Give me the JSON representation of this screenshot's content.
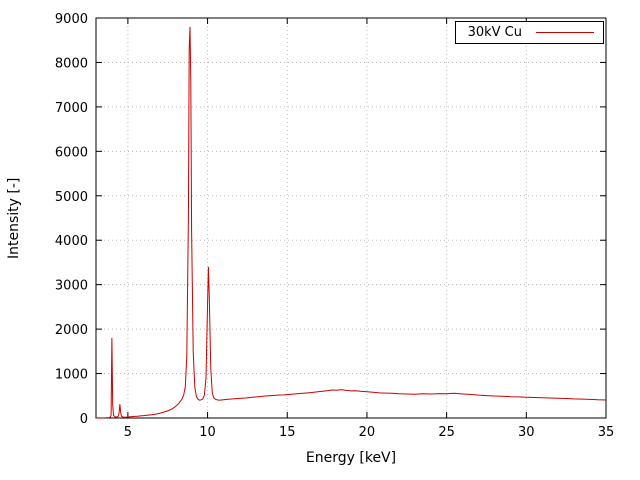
{
  "chart_data": {
    "type": "line",
    "title": "",
    "xlabel": "Energy [keV]",
    "ylabel": "Intensity [-]",
    "xlim": [
      3,
      35
    ],
    "ylim": [
      0,
      9000
    ],
    "xticks": [
      5,
      10,
      15,
      20,
      25,
      30,
      35
    ],
    "yticks": [
      0,
      1000,
      2000,
      3000,
      4000,
      5000,
      6000,
      7000,
      8000,
      9000
    ],
    "grid": true,
    "legend_position": "top-right",
    "legend_box": true,
    "line_color": "#cc0000",
    "grid_color": "#b8b8b8",
    "border_color": "#000000",
    "series": [
      {
        "name": "30kV Cu",
        "points": [
          [
            3.0,
            2
          ],
          [
            3.2,
            3
          ],
          [
            3.4,
            2
          ],
          [
            3.6,
            5
          ],
          [
            3.8,
            8
          ],
          [
            3.9,
            15
          ],
          [
            3.95,
            60
          ],
          [
            4.0,
            1800
          ],
          [
            4.05,
            300
          ],
          [
            4.1,
            60
          ],
          [
            4.2,
            25
          ],
          [
            4.3,
            20
          ],
          [
            4.4,
            40
          ],
          [
            4.45,
            120
          ],
          [
            4.5,
            310
          ],
          [
            4.55,
            120
          ],
          [
            4.6,
            40
          ],
          [
            4.7,
            20
          ],
          [
            4.8,
            18
          ],
          [
            5.0,
            22
          ],
          [
            5.2,
            30
          ],
          [
            5.4,
            35
          ],
          [
            5.6,
            40
          ],
          [
            5.8,
            48
          ],
          [
            6.0,
            55
          ],
          [
            6.2,
            62
          ],
          [
            6.5,
            75
          ],
          [
            6.8,
            90
          ],
          [
            7.0,
            105
          ],
          [
            7.2,
            125
          ],
          [
            7.5,
            160
          ],
          [
            7.8,
            210
          ],
          [
            8.0,
            260
          ],
          [
            8.2,
            330
          ],
          [
            8.4,
            430
          ],
          [
            8.5,
            520
          ],
          [
            8.6,
            700
          ],
          [
            8.7,
            1400
          ],
          [
            8.8,
            4500
          ],
          [
            8.85,
            8300
          ],
          [
            8.9,
            8800
          ],
          [
            8.95,
            7600
          ],
          [
            9.0,
            4200
          ],
          [
            9.1,
            1500
          ],
          [
            9.2,
            700
          ],
          [
            9.3,
            480
          ],
          [
            9.4,
            420
          ],
          [
            9.5,
            400
          ],
          [
            9.6,
            410
          ],
          [
            9.7,
            430
          ],
          [
            9.8,
            520
          ],
          [
            9.9,
            900
          ],
          [
            10.0,
            2600
          ],
          [
            10.05,
            3400
          ],
          [
            10.1,
            2800
          ],
          [
            10.2,
            1100
          ],
          [
            10.3,
            560
          ],
          [
            10.4,
            450
          ],
          [
            10.5,
            420
          ],
          [
            10.7,
            400
          ],
          [
            11.0,
            410
          ],
          [
            11.3,
            420
          ],
          [
            11.6,
            430
          ],
          [
            12.0,
            440
          ],
          [
            12.4,
            450
          ],
          [
            12.8,
            465
          ],
          [
            13.2,
            480
          ],
          [
            13.6,
            495
          ],
          [
            14.0,
            505
          ],
          [
            14.4,
            515
          ],
          [
            14.8,
            520
          ],
          [
            15.2,
            530
          ],
          [
            15.6,
            545
          ],
          [
            16.0,
            555
          ],
          [
            16.4,
            570
          ],
          [
            16.8,
            585
          ],
          [
            17.2,
            600
          ],
          [
            17.5,
            615
          ],
          [
            17.8,
            630
          ],
          [
            18.1,
            625
          ],
          [
            18.4,
            640
          ],
          [
            18.7,
            620
          ],
          [
            19.0,
            610
          ],
          [
            19.3,
            615
          ],
          [
            19.6,
            600
          ],
          [
            20.0,
            590
          ],
          [
            20.4,
            580
          ],
          [
            20.8,
            565
          ],
          [
            21.2,
            560
          ],
          [
            21.6,
            555
          ],
          [
            22.0,
            545
          ],
          [
            22.5,
            540
          ],
          [
            23.0,
            535
          ],
          [
            23.5,
            545
          ],
          [
            24.0,
            540
          ],
          [
            24.5,
            550
          ],
          [
            25.0,
            545
          ],
          [
            25.5,
            555
          ],
          [
            26.0,
            540
          ],
          [
            26.5,
            530
          ],
          [
            27.0,
            515
          ],
          [
            27.5,
            505
          ],
          [
            28.0,
            495
          ],
          [
            28.5,
            490
          ],
          [
            29.0,
            480
          ],
          [
            29.5,
            475
          ],
          [
            30.0,
            468
          ],
          [
            30.5,
            462
          ],
          [
            31.0,
            455
          ],
          [
            31.5,
            450
          ],
          [
            32.0,
            445
          ],
          [
            32.5,
            438
          ],
          [
            33.0,
            430
          ],
          [
            33.5,
            425
          ],
          [
            34.0,
            418
          ],
          [
            34.5,
            410
          ],
          [
            35.0,
            405
          ]
        ]
      }
    ]
  }
}
